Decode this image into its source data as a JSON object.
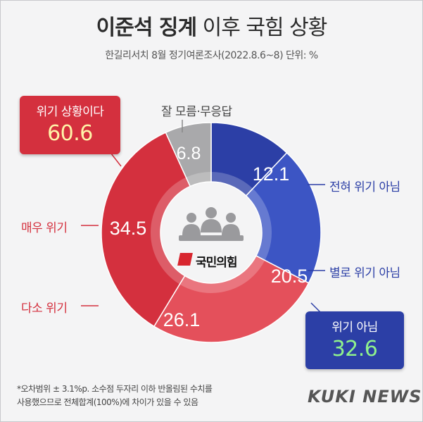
{
  "header": {
    "title_strong": "이준석 징계",
    "title_light": "이후 국힘 상황",
    "subtitle": "한길리서치 8월 정기여론조사(2022.8.6~8) 단위: %"
  },
  "chart_data": {
    "type": "pie",
    "series": [
      {
        "name": "전혀 위기 아님",
        "value": 12.1,
        "color": "#2c3fa6"
      },
      {
        "name": "별로 위기 아님",
        "value": 20.5,
        "color": "#3c55c4"
      },
      {
        "name": "다소 위기",
        "value": 26.1,
        "color": "#e4505b"
      },
      {
        "name": "매우 위기",
        "value": 34.5,
        "color": "#d4303e"
      },
      {
        "name": "잘 모름·무응답",
        "value": 6.8,
        "color": "#a9a9ab"
      }
    ],
    "groups": [
      {
        "name": "위기 상황이다",
        "value": 60.6,
        "color": "#d4303e"
      },
      {
        "name": "위기 아님",
        "value": 32.6,
        "color": "#2c3fa6"
      }
    ]
  },
  "center": {
    "party_name": "국민의힘",
    "icon": "meeting-people-icon"
  },
  "footnote": {
    "line1": "*오차범위 ± 3.1%p. 소수점 두자리 이하 반올림된 수치를",
    "line2": "사용했으므로 전체합계(100%)에 차이가 있을 수 있음"
  },
  "brand": "KUKI NEWS"
}
